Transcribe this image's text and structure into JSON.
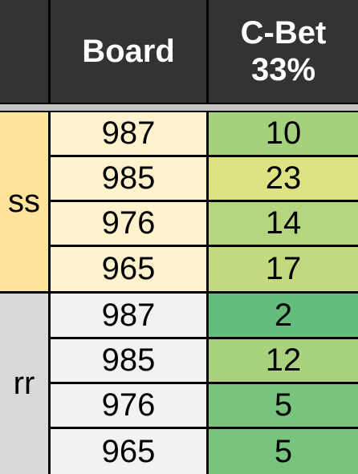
{
  "header": {
    "col_group": "",
    "col_board": "Board",
    "col_cbet_line1": "C-Bet",
    "col_cbet_line2": "33%"
  },
  "groups": [
    {
      "label": "ss",
      "label_color": "#fde39b",
      "board_bg": "#fff2cc",
      "rows": [
        {
          "board": "987",
          "cbet": "10",
          "cbet_color": "#a5d07e"
        },
        {
          "board": "985",
          "cbet": "23",
          "cbet_color": "#dfe283"
        },
        {
          "board": "976",
          "cbet": "14",
          "cbet_color": "#b5d57f"
        },
        {
          "board": "965",
          "cbet": "17",
          "cbet_color": "#c2d980"
        }
      ]
    },
    {
      "label": "rr",
      "label_color": "#d9d9d9",
      "board_bg": "#f2f2f2",
      "rows": [
        {
          "board": "987",
          "cbet": "2",
          "cbet_color": "#65bd7b"
        },
        {
          "board": "985",
          "cbet": "12",
          "cbet_color": "#a9d27f"
        },
        {
          "board": "976",
          "cbet": "5",
          "cbet_color": "#78c47c"
        },
        {
          "board": "965",
          "cbet": "5",
          "cbet_color": "#78c47c"
        }
      ]
    }
  ]
}
